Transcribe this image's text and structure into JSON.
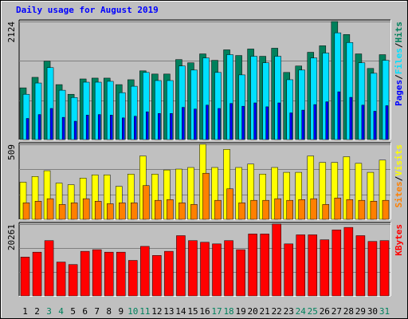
{
  "chart_data": [
    {
      "type": "bar",
      "title": "Daily usage for August 2019",
      "categories": [
        "1",
        "2",
        "3",
        "4",
        "5",
        "6",
        "7",
        "8",
        "9",
        "10",
        "11",
        "12",
        "13",
        "14",
        "15",
        "16",
        "17",
        "18",
        "19",
        "20",
        "21",
        "22",
        "23",
        "24",
        "25",
        "26",
        "27",
        "28",
        "29",
        "30",
        "31"
      ],
      "category_colors": [
        "#000000",
        "#000000",
        "#00805c",
        "#00805c",
        "#000000",
        "#000000",
        "#000000",
        "#000000",
        "#000000",
        "#00805c",
        "#00805c",
        "#000000",
        "#000000",
        "#000000",
        "#000000",
        "#000000",
        "#00805c",
        "#00805c",
        "#000000",
        "#000000",
        "#000000",
        "#000000",
        "#000000",
        "#00805c",
        "#00805c",
        "#000000",
        "#000000",
        "#000000",
        "#000000",
        "#000000",
        "#00805c"
      ],
      "legend_separator": "/",
      "ylim": [
        0,
        2124
      ],
      "yticks": [
        2124
      ],
      "grid_lines": [
        708,
        1416
      ],
      "series": [
        {
          "name": "Hits",
          "color": "#00805c",
          "values": [
            931,
            1120,
            1411,
            989,
            815,
            1091,
            1106,
            1106,
            989,
            1077,
            1237,
            1179,
            1179,
            1440,
            1382,
            1542,
            1426,
            1615,
            1513,
            1630,
            1499,
            1644,
            1208,
            1324,
            1571,
            1688,
            2124,
            1891,
            1542,
            1280,
            1528
          ]
        },
        {
          "name": "Files",
          "color": "#00e0ff",
          "values": [
            815,
            1018,
            1295,
            888,
            757,
            1033,
            1033,
            1048,
            844,
            960,
            1208,
            1062,
            1062,
            1324,
            1251,
            1469,
            1208,
            1528,
            1164,
            1499,
            1382,
            1499,
            1077,
            1251,
            1469,
            1557,
            1921,
            1746,
            1382,
            1193,
            1426
          ]
        },
        {
          "name": "Pages",
          "color": "#0000ff",
          "values": [
            380,
            450,
            560,
            400,
            330,
            440,
            450,
            440,
            390,
            420,
            500,
            470,
            470,
            580,
            550,
            620,
            560,
            650,
            600,
            660,
            590,
            660,
            480,
            530,
            630,
            680,
            860,
            760,
            620,
            510,
            610
          ]
        }
      ]
    },
    {
      "type": "bar",
      "ylim": [
        0,
        509
      ],
      "yticks": [
        509
      ],
      "grid_lines": [
        170,
        339
      ],
      "series": [
        {
          "name": "Visits",
          "color": "#ffff00",
          "values": [
            252,
            291,
            330,
            246,
            235,
            280,
            302,
            302,
            224,
            307,
            430,
            307,
            335,
            341,
            352,
            509,
            352,
            475,
            352,
            375,
            307,
            352,
            319,
            319,
            430,
            386,
            386,
            425,
            380,
            319,
            402
          ]
        },
        {
          "name": "Sites",
          "color": "#ff8000",
          "values": [
            112,
            123,
            140,
            101,
            112,
            140,
            123,
            106,
            112,
            112,
            229,
            129,
            134,
            112,
            101,
            313,
            129,
            207,
            112,
            129,
            129,
            140,
            129,
            134,
            140,
            101,
            145,
            134,
            129,
            123,
            129
          ]
        }
      ]
    },
    {
      "type": "bar",
      "ylim": [
        0,
        20261
      ],
      "yticks": [
        20261
      ],
      "grid_lines": [
        6754,
        13507
      ],
      "series": [
        {
          "name": "KBytes",
          "color": "#ff0000",
          "values": [
            10946,
            12344,
            15604,
            9549,
            8850,
            12577,
            13042,
            12344,
            12344,
            10015,
            13974,
            11412,
            12577,
            17002,
            15604,
            15139,
            14673,
            15604,
            13042,
            17468,
            17468,
            20261,
            14673,
            17235,
            17235,
            15837,
            18632,
            19331,
            17002,
            15371,
            15604
          ]
        }
      ]
    }
  ]
}
